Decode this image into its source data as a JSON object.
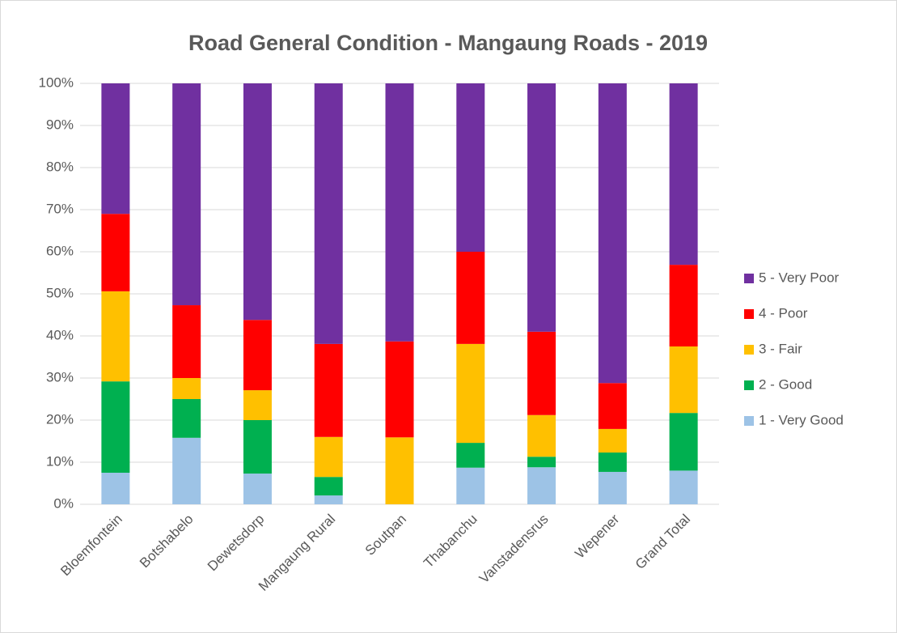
{
  "chart_data": {
    "type": "bar",
    "stacked": true,
    "title": "Road General Condition - Mangaung Roads - 2019",
    "categories": [
      "Bloemfontein",
      "Botshabelo",
      "Dewetsdorp",
      "Mangaung Rural",
      "Soutpan",
      "Thabanchu",
      "Vanstadensrus",
      "Wepener",
      "Grand Total"
    ],
    "series": [
      {
        "name": "1 - Very Good",
        "color": "#9dc3e6",
        "values": [
          7.5,
          15.8,
          7.3,
          2.1,
          0,
          8.7,
          8.8,
          7.7,
          8.0
        ]
      },
      {
        "name": "2 - Good",
        "color": "#00b050",
        "values": [
          21.7,
          9.2,
          12.7,
          4.4,
          0,
          5.9,
          2.5,
          4.6,
          13.7
        ]
      },
      {
        "name": "3 - Fair",
        "color": "#ffc000",
        "values": [
          21.4,
          5.0,
          7.1,
          9.5,
          15.9,
          23.5,
          9.9,
          5.6,
          15.8
        ]
      },
      {
        "name": "4 - Poor",
        "color": "#ff0000",
        "values": [
          18.4,
          17.3,
          16.7,
          22.1,
          22.8,
          21.9,
          19.8,
          10.9,
          19.4
        ]
      },
      {
        "name": "5 - Very Poor",
        "color": "#7030a0",
        "values": [
          31.0,
          52.7,
          56.2,
          61.9,
          61.3,
          40.0,
          59.0,
          71.2,
          43.1
        ]
      }
    ],
    "ylim": [
      0,
      100
    ],
    "yticks": [
      {
        "value": 0,
        "label": "0%"
      },
      {
        "value": 10,
        "label": "10%"
      },
      {
        "value": 20,
        "label": "20%"
      },
      {
        "value": 30,
        "label": "30%"
      },
      {
        "value": 40,
        "label": "40%"
      },
      {
        "value": 50,
        "label": "50%"
      },
      {
        "value": 60,
        "label": "60%"
      },
      {
        "value": 70,
        "label": "70%"
      },
      {
        "value": 80,
        "label": "80%"
      },
      {
        "value": 90,
        "label": "90%"
      },
      {
        "value": 100,
        "label": "100%"
      }
    ],
    "grid": true,
    "legend": "right"
  }
}
